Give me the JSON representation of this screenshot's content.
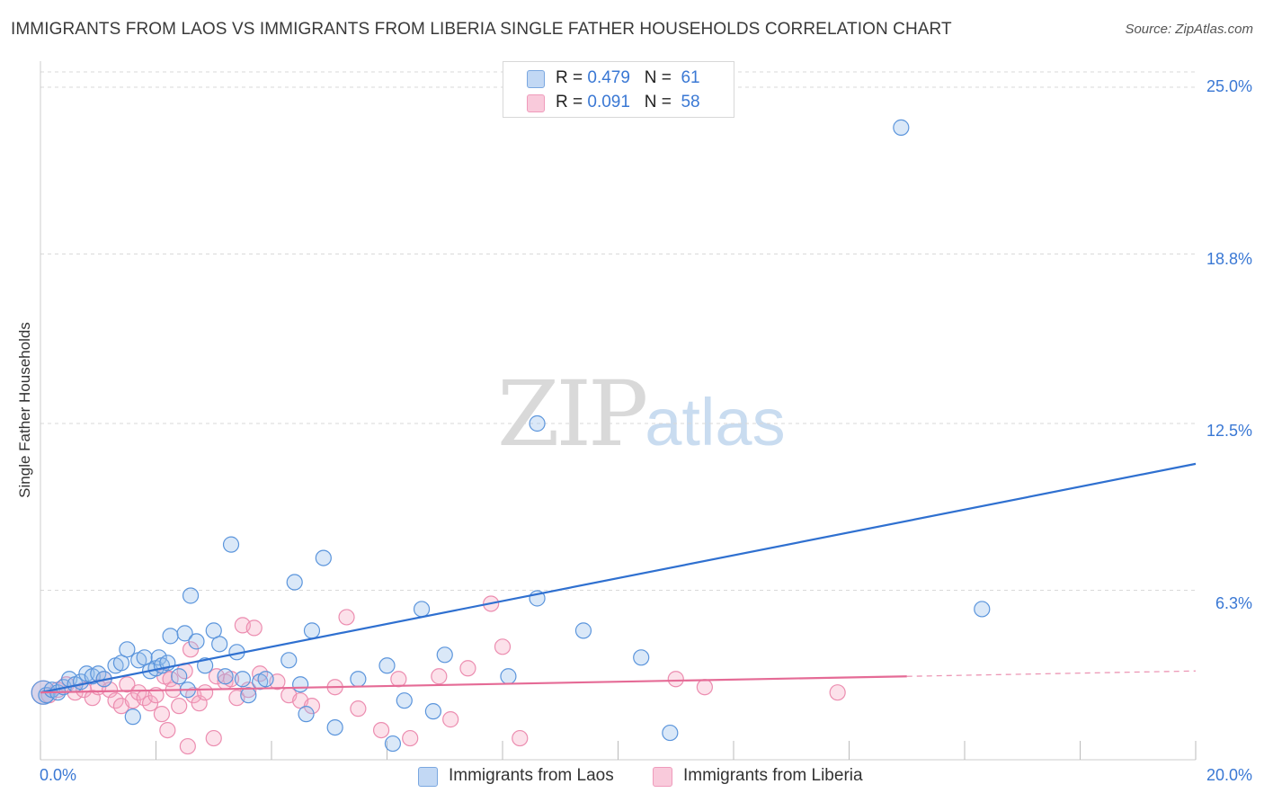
{
  "header": {
    "title": "IMMIGRANTS FROM LAOS VS IMMIGRANTS FROM LIBERIA SINGLE FATHER HOUSEHOLDS CORRELATION CHART",
    "source": "Source: ZipAtlas.com"
  },
  "watermark": {
    "zip": "ZIP",
    "atlas": "atlas"
  },
  "legend": {
    "rows": [
      {
        "r_label": "R =",
        "r_value": "0.479",
        "n_label": "N =",
        "n_value": "61",
        "color": "#a9c8f0"
      },
      {
        "r_label": "R =",
        "r_value": "0.091",
        "n_label": "N =",
        "n_value": "58",
        "color": "#f7bcd0"
      }
    ]
  },
  "bottom_legend": [
    {
      "label": "Immigrants from Laos",
      "color": "#a9c8f0"
    },
    {
      "label": "Immigrants from Liberia",
      "color": "#f7bcd0"
    }
  ],
  "colors": {
    "laos_fill": "rgba(150,190,235,0.35)",
    "laos_stroke": "#5b95dc",
    "laos_line": "#2f70d0",
    "liberia_fill": "rgba(245,170,195,0.35)",
    "liberia_stroke": "#ec8db0",
    "liberia_line": "#e56b96",
    "tick_text": "#3a78d4",
    "grid": "#d9d9d9"
  },
  "chart_data": {
    "type": "scatter",
    "title": "IMMIGRANTS FROM LAOS VS IMMIGRANTS FROM LIBERIA SINGLE FATHER HOUSEHOLDS CORRELATION CHART",
    "xlabel": "",
    "ylabel": "Single Father Households",
    "xlim": [
      0,
      20
    ],
    "ylim": [
      0,
      25
    ],
    "x_tick_labels": [
      "0.0%",
      "20.0%"
    ],
    "y_ticks": [
      6.3,
      12.5,
      18.8,
      25.0
    ],
    "y_tick_labels": [
      "6.3%",
      "12.5%",
      "18.8%",
      "25.0%"
    ],
    "grid": true,
    "legend_position": "top-center",
    "series": [
      {
        "name": "Immigrants from Laos",
        "R": 0.479,
        "N": 61,
        "trend": {
          "x0": 0.0,
          "y0": 2.5,
          "x1": 20.0,
          "y1": 11.0
        },
        "points": [
          [
            0.05,
            2.5
          ],
          [
            0.1,
            2.4
          ],
          [
            0.2,
            2.6
          ],
          [
            0.3,
            2.5
          ],
          [
            0.4,
            2.7
          ],
          [
            0.5,
            3.0
          ],
          [
            0.6,
            2.8
          ],
          [
            0.7,
            2.9
          ],
          [
            0.8,
            3.2
          ],
          [
            0.9,
            3.1
          ],
          [
            1.0,
            3.2
          ],
          [
            1.1,
            3.0
          ],
          [
            1.3,
            3.5
          ],
          [
            1.4,
            3.6
          ],
          [
            1.5,
            4.1
          ],
          [
            1.6,
            1.6
          ],
          [
            1.7,
            3.7
          ],
          [
            1.8,
            3.8
          ],
          [
            1.9,
            3.3
          ],
          [
            2.0,
            3.4
          ],
          [
            2.05,
            3.8
          ],
          [
            2.1,
            3.5
          ],
          [
            2.2,
            3.6
          ],
          [
            2.25,
            4.6
          ],
          [
            2.4,
            3.1
          ],
          [
            2.5,
            4.7
          ],
          [
            2.55,
            2.6
          ],
          [
            2.6,
            6.1
          ],
          [
            2.7,
            4.4
          ],
          [
            2.85,
            3.5
          ],
          [
            3.0,
            4.8
          ],
          [
            3.1,
            4.3
          ],
          [
            3.2,
            3.1
          ],
          [
            3.3,
            8.0
          ],
          [
            3.4,
            4.0
          ],
          [
            3.5,
            3.0
          ],
          [
            3.6,
            2.4
          ],
          [
            3.8,
            2.9
          ],
          [
            3.9,
            3.0
          ],
          [
            4.3,
            3.7
          ],
          [
            4.4,
            6.6
          ],
          [
            4.5,
            2.8
          ],
          [
            4.6,
            1.7
          ],
          [
            4.7,
            4.8
          ],
          [
            4.9,
            7.5
          ],
          [
            5.1,
            1.2
          ],
          [
            5.5,
            3.0
          ],
          [
            6.0,
            3.5
          ],
          [
            6.1,
            0.6
          ],
          [
            6.3,
            2.2
          ],
          [
            6.6,
            5.6
          ],
          [
            6.8,
            1.8
          ],
          [
            7.0,
            3.9
          ],
          [
            8.1,
            3.1
          ],
          [
            8.6,
            12.5
          ],
          [
            8.6,
            6.0
          ],
          [
            9.4,
            4.8
          ],
          [
            10.4,
            3.8
          ],
          [
            10.9,
            1.0
          ],
          [
            14.9,
            23.5
          ],
          [
            16.3,
            5.6
          ]
        ]
      },
      {
        "name": "Immigrants from Liberia",
        "R": 0.091,
        "N": 58,
        "trend": {
          "x0": 0.0,
          "y0": 2.5,
          "x1": 15.0,
          "y1": 3.1,
          "dashed_to_x": 20.0,
          "dashed_to_y": 3.3
        },
        "points": [
          [
            0.05,
            2.5
          ],
          [
            0.15,
            2.4
          ],
          [
            0.3,
            2.6
          ],
          [
            0.45,
            2.8
          ],
          [
            0.6,
            2.5
          ],
          [
            0.75,
            2.6
          ],
          [
            0.9,
            2.3
          ],
          [
            1.0,
            2.7
          ],
          [
            1.1,
            3.0
          ],
          [
            1.2,
            2.6
          ],
          [
            1.3,
            2.2
          ],
          [
            1.4,
            2.0
          ],
          [
            1.5,
            2.8
          ],
          [
            1.6,
            2.2
          ],
          [
            1.7,
            2.5
          ],
          [
            1.8,
            2.3
          ],
          [
            1.9,
            2.1
          ],
          [
            2.0,
            2.4
          ],
          [
            2.1,
            1.7
          ],
          [
            2.15,
            3.1
          ],
          [
            2.25,
            3.0
          ],
          [
            2.3,
            2.6
          ],
          [
            2.4,
            2.0
          ],
          [
            2.5,
            3.3
          ],
          [
            2.55,
            0.5
          ],
          [
            2.6,
            4.1
          ],
          [
            2.65,
            2.4
          ],
          [
            2.75,
            2.1
          ],
          [
            2.85,
            2.5
          ],
          [
            3.0,
            0.8
          ],
          [
            3.05,
            3.1
          ],
          [
            3.2,
            2.9
          ],
          [
            3.3,
            3.0
          ],
          [
            3.4,
            2.3
          ],
          [
            3.5,
            5.0
          ],
          [
            3.6,
            2.6
          ],
          [
            3.7,
            4.9
          ],
          [
            3.8,
            3.2
          ],
          [
            4.1,
            2.9
          ],
          [
            4.3,
            2.4
          ],
          [
            4.5,
            2.2
          ],
          [
            4.7,
            2.0
          ],
          [
            5.1,
            2.7
          ],
          [
            5.3,
            5.3
          ],
          [
            5.5,
            1.9
          ],
          [
            5.9,
            1.1
          ],
          [
            6.2,
            3.0
          ],
          [
            6.4,
            0.8
          ],
          [
            6.9,
            3.1
          ],
          [
            7.1,
            1.5
          ],
          [
            7.4,
            3.4
          ],
          [
            7.8,
            5.8
          ],
          [
            8.0,
            4.2
          ],
          [
            8.3,
            0.8
          ],
          [
            11.0,
            3.0
          ],
          [
            11.5,
            2.7
          ],
          [
            13.8,
            2.5
          ],
          [
            2.2,
            1.1
          ]
        ]
      }
    ]
  }
}
